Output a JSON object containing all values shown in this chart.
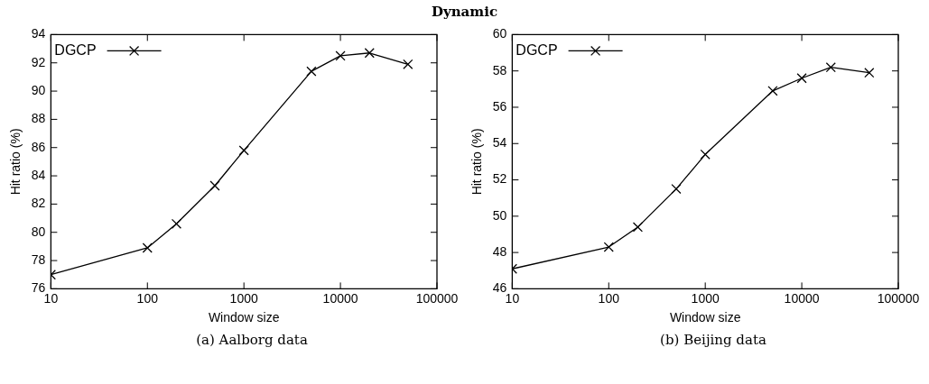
{
  "chart_data": [
    {
      "type": "line",
      "title": "Dynamic",
      "xlabel": "Window size",
      "ylabel": "Hit ratio (%)",
      "annotations": [
        "(a) Aalborg data"
      ],
      "x": [
        10,
        100,
        200,
        500,
        1000,
        5000,
        10000,
        20000,
        50000
      ],
      "series": [
        {
          "name": "DGCP",
          "color": "#000000",
          "values": [
            77.0,
            78.9,
            80.6,
            83.3,
            85.8,
            91.4,
            92.5,
            92.7,
            91.9
          ]
        }
      ],
      "log": "x",
      "xlim": [
        10,
        100000
      ],
      "xticks": [
        10,
        100,
        1000,
        10000,
        100000
      ],
      "ylim": [
        76,
        94
      ],
      "yticks": [
        76,
        78,
        80,
        82,
        84,
        86,
        88,
        90,
        92,
        94
      ],
      "grid": false,
      "legend": "top left",
      "marker": "cross",
      "line_style": "solid"
    },
    {
      "type": "line",
      "xlabel": "Window size",
      "ylabel": "Hit ratio (%)",
      "annotations": [
        "(b) Beijing data"
      ],
      "x": [
        10,
        100,
        200,
        500,
        1000,
        5000,
        10000,
        20000,
        50000
      ],
      "series": [
        {
          "name": "DGCP",
          "color": "#000000",
          "values": [
            47.1,
            48.3,
            49.4,
            51.5,
            53.4,
            56.9,
            57.6,
            58.2,
            57.9
          ]
        }
      ],
      "log": "x",
      "xlim": [
        10,
        100000
      ],
      "xticks": [
        10,
        100,
        1000,
        10000,
        100000
      ],
      "ylim": [
        46,
        60
      ],
      "yticks": [
        46,
        48,
        50,
        52,
        54,
        56,
        58,
        60
      ],
      "grid": false,
      "legend": "top left",
      "marker": "cross",
      "line_style": "solid"
    }
  ]
}
